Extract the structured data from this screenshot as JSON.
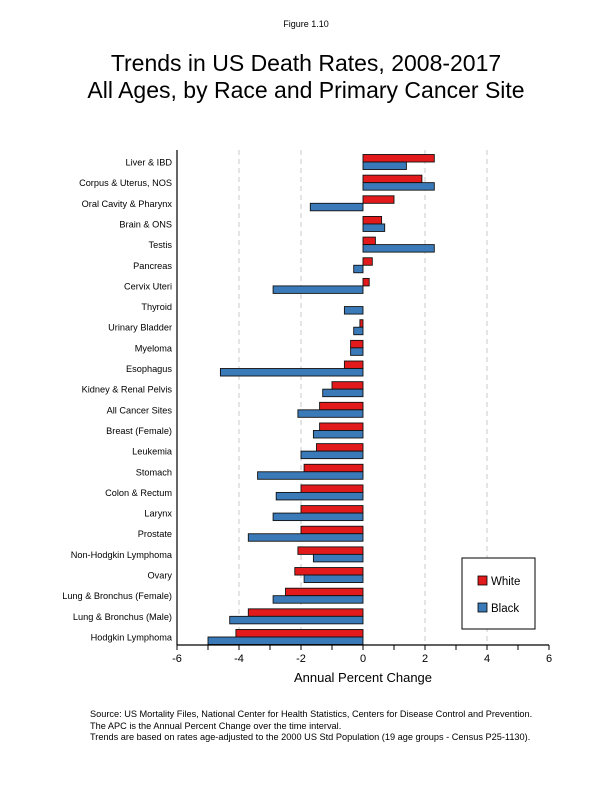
{
  "figure_label": "Figure 1.10",
  "title_lines": [
    "Trends in US Death Rates, 2008-2017",
    "All Ages, by Race and Primary Cancer Site"
  ],
  "footer_lines": [
    "Source: US Mortality Files, National Center for Health Statistics, Centers for Disease Control and Prevention.",
    "The APC is the Annual Percent Change over the time interval.",
    "Trends are based on rates age-adjusted to the 2000 US Std Population (19 age groups - Census P25-1130)."
  ],
  "chart_data": {
    "type": "bar",
    "orientation": "horizontal",
    "title": "Trends in US Death Rates, 2008-2017 All Ages, by Race and Primary Cancer Site",
    "xlabel": "Annual Percent Change",
    "ylabel": "",
    "xlim": [
      -6,
      6
    ],
    "x_ticks": [
      -6,
      -4,
      -2,
      0,
      2,
      4,
      6
    ],
    "x_minor_ticks": [
      -5,
      -3,
      -1,
      1,
      3,
      5
    ],
    "grid": "vertical dashed at -4, -2, 2, 4",
    "legend_position": "bottom-right",
    "categories": [
      "Liver & IBD",
      "Corpus & Uterus, NOS",
      "Oral Cavity & Pharynx",
      "Brain & ONS",
      "Testis",
      "Pancreas",
      "Cervix Uteri",
      "Thyroid",
      "Urinary Bladder",
      "Myeloma",
      "Esophagus",
      "Kidney & Renal Pelvis",
      "All Cancer Sites",
      "Breast (Female)",
      "Leukemia",
      "Stomach",
      "Colon & Rectum",
      "Larynx",
      "Prostate",
      "Non-Hodgkin Lymphoma",
      "Ovary",
      "Lung & Bronchus (Female)",
      "Lung & Bronchus (Male)",
      "Hodgkin Lymphoma"
    ],
    "series": [
      {
        "name": "White",
        "color": "#e31a1c",
        "values": [
          2.3,
          1.9,
          1.0,
          0.6,
          0.4,
          0.3,
          0.2,
          0.0,
          -0.1,
          -0.4,
          -0.6,
          -1.0,
          -1.4,
          -1.4,
          -1.5,
          -1.9,
          -2.0,
          -2.0,
          -2.0,
          -2.1,
          -2.2,
          -2.5,
          -3.7,
          -4.1
        ]
      },
      {
        "name": "Black",
        "color": "#3a7ab8",
        "values": [
          1.4,
          2.3,
          -1.7,
          0.7,
          2.3,
          -0.3,
          -2.9,
          -0.6,
          -0.3,
          -0.4,
          -4.6,
          -1.3,
          -2.1,
          -1.6,
          -2.0,
          -3.4,
          -2.8,
          -2.9,
          -3.7,
          -1.6,
          -1.9,
          -2.9,
          -4.3,
          -5.0
        ]
      }
    ]
  }
}
